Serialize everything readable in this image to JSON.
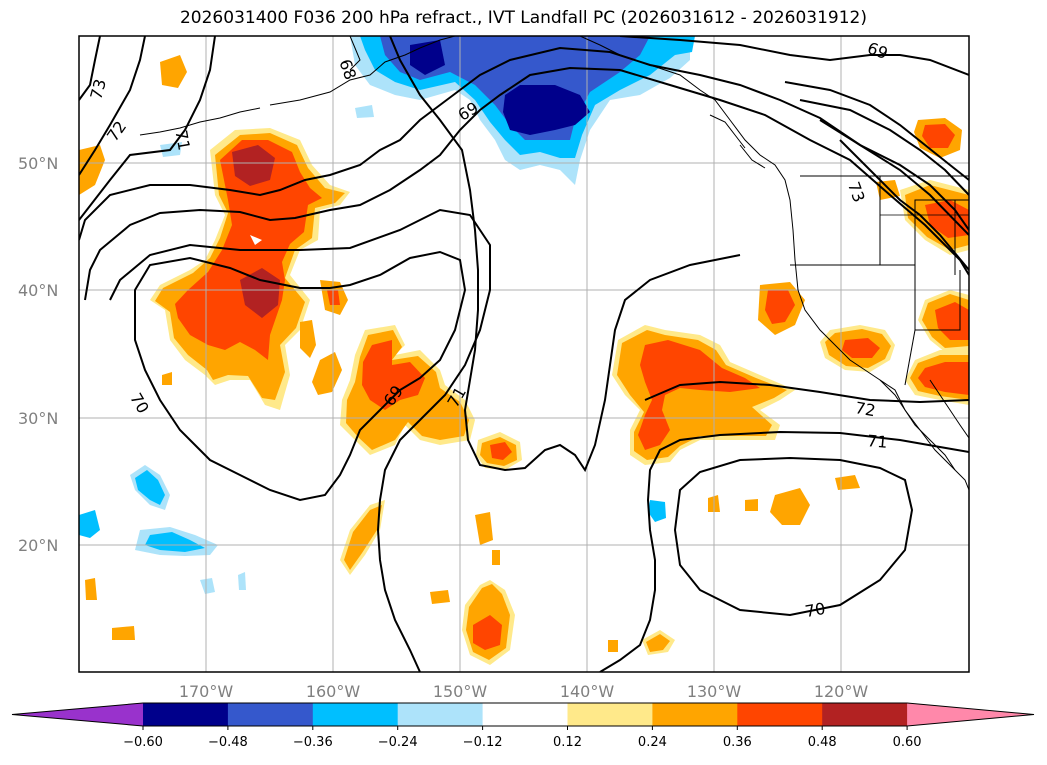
{
  "title": "2026031400 F036 200 hPa refract., IVT Landfall PC (2026031612 - 2026031912)",
  "lat_labels": [
    "50°N",
    "40°N",
    "30°N",
    "20°N"
  ],
  "lon_labels": [
    "170°W",
    "160°W",
    "150°W",
    "140°W",
    "130°W",
    "120°W"
  ],
  "contour_labels": [
    "73",
    "72",
    "71",
    "68",
    "69",
    "69",
    "69",
    "70",
    "69",
    "71",
    "72",
    "71",
    "73",
    "70"
  ],
  "colorbar": {
    "ticks": [
      "−0.60",
      "−0.48",
      "−0.36",
      "−0.24",
      "−0.12",
      "0.12",
      "0.24",
      "0.36",
      "0.48",
      "0.60"
    ],
    "colors": [
      "#9932cc",
      "#00008b",
      "#3558cc",
      "#00bfff",
      "#ade3fa",
      "#ffffff",
      "#ffe98a",
      "#ffa500",
      "#ff4500",
      "#b22222",
      "#ff88aa"
    ]
  },
  "colors": {
    "land_line": "#000000",
    "grid": "#b0b0b0",
    "label": "#808080"
  }
}
